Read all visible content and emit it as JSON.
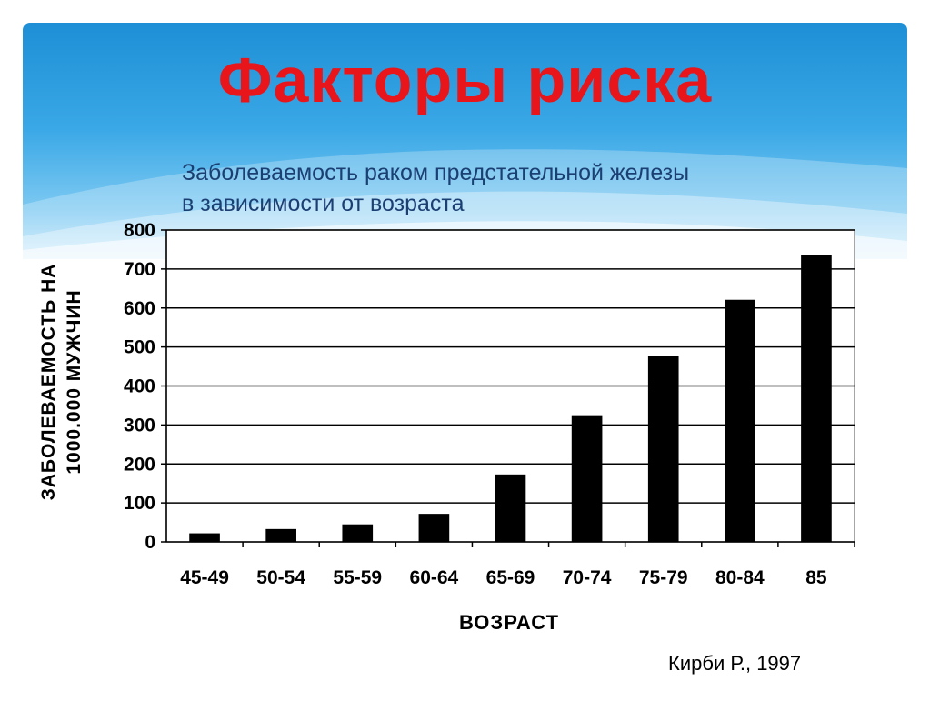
{
  "slide": {
    "title": "Факторы риска",
    "subtitle_line1": "Заболеваемость раком предстательной железы",
    "subtitle_line2": "в зависимости от возраста",
    "source": "Кирби Р., 1997"
  },
  "colors": {
    "title": "#e8161b",
    "subtitle": "#1b3f73",
    "banner_top": "#1e8fd6",
    "banner_bottom": "#c6e8fb",
    "bars": "#000000"
  },
  "chart_data": {
    "type": "bar",
    "categories": [
      "45-49",
      "50-54",
      "55-59",
      "60-64",
      "65-69",
      "70-74",
      "75-79",
      "80-84",
      "85"
    ],
    "values": [
      22,
      33,
      45,
      72,
      173,
      325,
      476,
      621,
      737
    ],
    "ylabel_line1": "ЗАБОЛЕВАЕМОСТЬ НА",
    "ylabel_line2": "1000.000 МУЖЧИН",
    "xlabel": "ВОЗРАСТ",
    "ylim": [
      0,
      800
    ],
    "yticks": [
      0,
      100,
      200,
      300,
      400,
      500,
      600,
      700,
      800
    ],
    "grid": true,
    "legend": "none"
  }
}
